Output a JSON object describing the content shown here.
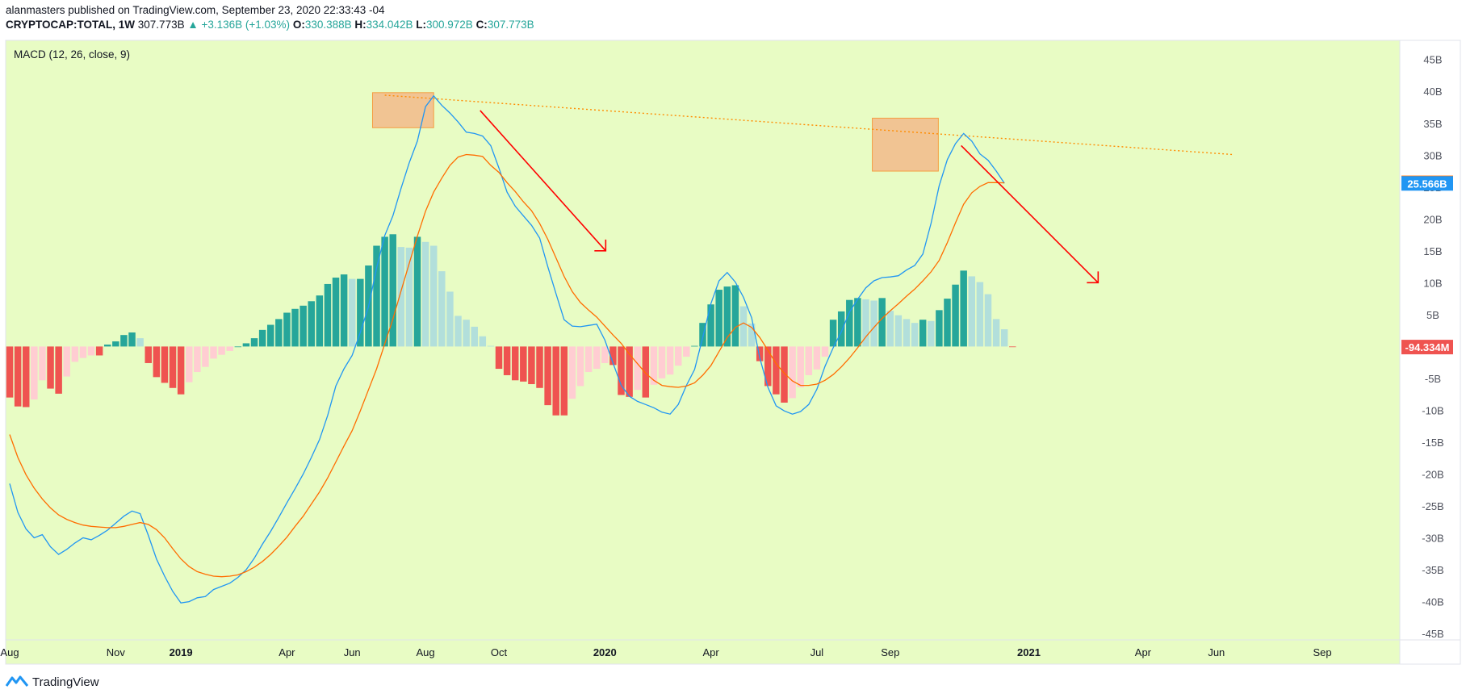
{
  "header": {
    "line1": "alanmasters published on TradingView.com, September 23, 2020 22:33:43 -04",
    "symbol": "CRYPTOCAP:TOTAL, 1W",
    "price": "307.773B",
    "change": "▲ +3.136B (+1.03%)",
    "o_label": "O:",
    "o": "330.388B",
    "h_label": "H:",
    "h": "334.042B",
    "l_label": "L:",
    "l": "300.972B",
    "c_label": "C:",
    "c": "307.773B"
  },
  "footer": {
    "brand": "TradingView"
  },
  "colors": {
    "background": "#e8fcc4",
    "macd": "#2196f3",
    "signal": "#ff6d00",
    "hist_up_strong": "#26a69a",
    "hist_up_weak": "#b2dfdb",
    "hist_down_strong": "#ef5350",
    "hist_down_weak": "#ffcdd2",
    "annotation_box": "#f4b183",
    "arrow": "#ff0000"
  },
  "chart_data": {
    "type": "line",
    "title": "MACD (12, 26, close, 9)",
    "ylim": [
      -46,
      48
    ],
    "y_unit": "B",
    "y_ticks": [
      "45B",
      "40B",
      "35B",
      "30B",
      "25B",
      "20B",
      "15B",
      "10B",
      "5B",
      "0",
      "-5B",
      "-10B",
      "-15B",
      "-20B",
      "-25B",
      "-30B",
      "-35B",
      "-40B",
      "-45B"
    ],
    "y_tick_values": [
      45,
      40,
      35,
      30,
      25,
      20,
      15,
      10,
      5,
      0,
      -5,
      -10,
      -15,
      -20,
      -25,
      -30,
      -35,
      -40,
      -45
    ],
    "x_ticks": [
      {
        "label": "Aug",
        "week": 0
      },
      {
        "label": "Nov",
        "week": 13
      },
      {
        "label": "2019",
        "week": 21
      },
      {
        "label": "Apr",
        "week": 34
      },
      {
        "label": "Jun",
        "week": 42
      },
      {
        "label": "Aug",
        "week": 51
      },
      {
        "label": "Oct",
        "week": 60
      },
      {
        "label": "2020",
        "week": 73
      },
      {
        "label": "Apr",
        "week": 86
      },
      {
        "label": "Jul",
        "week": 99
      },
      {
        "label": "Sep",
        "week": 108
      },
      {
        "label": "2021",
        "week": 125
      },
      {
        "label": "Apr",
        "week": 139
      },
      {
        "label": "Jun",
        "week": 148
      },
      {
        "label": "Sep",
        "week": 161
      }
    ],
    "x_range_weeks": [
      -0.5,
      170.5
    ],
    "series": [
      {
        "name": "MACD",
        "values": [
          -21.5,
          -26,
          -28.6,
          -30,
          -29.5,
          -31.4,
          -32.6,
          -31.8,
          -30.8,
          -30,
          -30.3,
          -29.6,
          -28.8,
          -27.7,
          -26.6,
          -25.8,
          -26.2,
          -29.6,
          -33.3,
          -36,
          -38.4,
          -40.2,
          -40,
          -39.4,
          -39.2,
          -38.1,
          -37.6,
          -37.1,
          -36.2,
          -35,
          -33.2,
          -31,
          -29,
          -26.8,
          -24.5,
          -22.3,
          -20,
          -17.4,
          -14.6,
          -10.8,
          -6.2,
          -3.5,
          -1.4,
          2.2,
          6.2,
          12.3,
          17.4,
          20.5,
          24.8,
          28.8,
          32.2,
          37.6,
          39.3,
          37.8,
          36.6,
          35.2,
          33.6,
          33.4,
          33,
          31.5,
          28,
          24.2,
          22,
          20.5,
          19,
          17,
          12.5,
          8.3,
          4.2,
          3.2,
          3.1,
          3.3,
          3.5,
          1,
          -2.6,
          -6.1,
          -7.8,
          -8.6,
          -9.1,
          -9.6,
          -10.3,
          -10.6,
          -9.1,
          -6.1,
          -3.6,
          1.4,
          6.7,
          10.3,
          11.6,
          10.1,
          7.7,
          4.5,
          -1.8,
          -6.4,
          -9.3,
          -10.1,
          -10.6,
          -10.2,
          -9.1,
          -6.7,
          -3.1,
          -0.2,
          2.3,
          5.4,
          7.4,
          9.2,
          10.3,
          10.8,
          10.9,
          11.1,
          12,
          12.7,
          14.5,
          19.3,
          25.2,
          29.3,
          31.8,
          33.4,
          32.2,
          30.2,
          29.2,
          27.5,
          25.6
        ]
      },
      {
        "name": "Signal",
        "values": [
          -13.8,
          -17.4,
          -20.1,
          -22.2,
          -23.9,
          -25.3,
          -26.4,
          -27.1,
          -27.6,
          -28,
          -28.2,
          -28.3,
          -28.4,
          -28.4,
          -28.2,
          -27.9,
          -27.6,
          -27.9,
          -28.7,
          -30,
          -31.7,
          -33.3,
          -34.5,
          -35.3,
          -35.7,
          -36,
          -36.1,
          -36,
          -35.8,
          -35.3,
          -34.6,
          -33.7,
          -32.6,
          -31.3,
          -29.9,
          -28.2,
          -26.6,
          -24.7,
          -22.8,
          -20.6,
          -18.1,
          -15.6,
          -13.2,
          -10.1,
          -6.8,
          -3.5,
          0.4,
          4.3,
          8.7,
          13,
          17.3,
          21.2,
          24.2,
          26.4,
          28.4,
          29.7,
          30.1,
          30,
          29.8,
          28.4,
          27.3,
          25.7,
          24.3,
          22.7,
          21.3,
          19.3,
          16.8,
          13.9,
          11,
          8.6,
          6.9,
          5.7,
          4.6,
          3.2,
          1.8,
          0.5,
          -1.2,
          -2.7,
          -4.2,
          -5.3,
          -6.1,
          -6.3,
          -6.4,
          -6.2,
          -5.7,
          -4.5,
          -3,
          -0.8,
          1.4,
          3,
          3.7,
          3,
          1.4,
          -0.6,
          -2.7,
          -4.2,
          -5.4,
          -6.1,
          -6.1,
          -5.9,
          -5.3,
          -4.4,
          -3.2,
          -1.8,
          -0.2,
          1.5,
          3,
          4.4,
          5.6,
          6.7,
          7.9,
          9,
          10.3,
          11.7,
          13.5,
          16.3,
          19.4,
          22.3,
          24.1,
          25.1,
          25.7,
          25.7,
          25.66
        ]
      }
    ],
    "histogram": [
      -8,
      -9.4,
      -9.5,
      -8.3,
      -5.3,
      -6.6,
      -7.4,
      -4.7,
      -2.4,
      -1.8,
      -1.4,
      -1.4,
      0.3,
      0.8,
      1.8,
      2.2,
      1.3,
      -2.6,
      -4.8,
      -5.7,
      -6.5,
      -7.5,
      -5.6,
      -4,
      -3.2,
      -1.9,
      -1.3,
      -0.7,
      0,
      0.5,
      1.3,
      2.6,
      3.4,
      4.3,
      5.3,
      5.9,
      6.4,
      7.1,
      8,
      9.8,
      10.8,
      11.3,
      10.6,
      10.6,
      12.7,
      15.8,
      17.2,
      17.6,
      15.6,
      15.5,
      17.2,
      16.4,
      15.8,
      11.8,
      8.6,
      4.8,
      4.2,
      3.1,
      1.6,
      0.1,
      -3.5,
      -4.5,
      -5.3,
      -5.5,
      -5.9,
      -6.5,
      -9.2,
      -10.8,
      -10.8,
      -8.2,
      -6.2,
      -4,
      -3.5,
      -2.6,
      -2.9,
      -7.6,
      -7.9,
      -6.8,
      -8,
      -6,
      -5,
      -4.4,
      -3,
      -1.6,
      0.1,
      3.7,
      6.6,
      8.9,
      9.4,
      9.6,
      6.3,
      3.6,
      -2.3,
      -6.2,
      -7.5,
      -8.8,
      -8.1,
      -6.4,
      -4.5,
      -3.6,
      -1.6,
      4.2,
      5.5,
      7.3,
      7.6,
      7.4,
      7.2,
      7.6,
      5.6,
      4.9,
      4.3,
      3.7,
      4.2,
      4,
      5.7,
      7.5,
      9.7,
      11.9,
      11,
      10.1,
      8.2,
      4.3,
      2.7,
      -0.09
    ]
  }
}
